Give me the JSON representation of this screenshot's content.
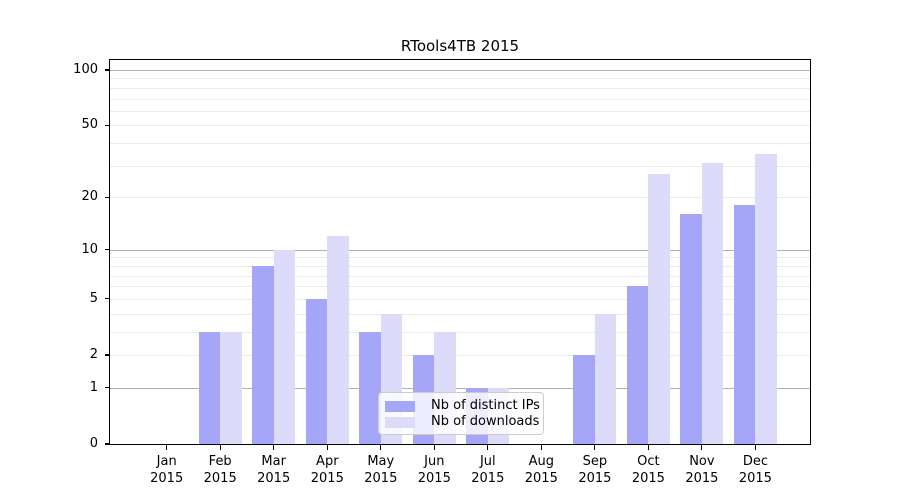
{
  "chart_data": {
    "type": "bar",
    "title": "RTools4TB 2015",
    "xlabel": "",
    "ylabel": "",
    "yscale": "log1p",
    "ylim": [
      0,
      113
    ],
    "grid": {
      "on": true,
      "major_values": [
        1,
        10,
        100
      ],
      "minor_values": [
        2,
        3,
        4,
        5,
        6,
        7,
        8,
        9,
        20,
        30,
        40,
        50,
        60,
        70,
        80,
        90
      ]
    },
    "y_axis": {
      "ticks": [
        {
          "label": "0",
          "value": 0
        },
        {
          "label": "1",
          "value": 1
        },
        {
          "label": "2",
          "value": 2
        },
        {
          "label": "5",
          "value": 5
        },
        {
          "label": "10",
          "value": 10
        },
        {
          "label": "20",
          "value": 20
        },
        {
          "label": "50",
          "value": 50
        },
        {
          "label": "100",
          "value": 100
        }
      ]
    },
    "x_axis": {
      "months": [
        "Jan",
        "Feb",
        "Mar",
        "Apr",
        "May",
        "Jun",
        "Jul",
        "Aug",
        "Sep",
        "Oct",
        "Nov",
        "Dec"
      ],
      "year": "2015"
    },
    "categories": [
      "Jan 2015",
      "Feb 2015",
      "Mar 2015",
      "Apr 2015",
      "May 2015",
      "Jun 2015",
      "Jul 2015",
      "Aug 2015",
      "Sep 2015",
      "Oct 2015",
      "Nov 2015",
      "Dec 2015"
    ],
    "series": [
      {
        "id": "distinct-ips",
        "name": "Nb of distinct IPs",
        "color": "#a6a6f9",
        "values": [
          0,
          3,
          8,
          5,
          3,
          2,
          1,
          0,
          2,
          6,
          16,
          18
        ]
      },
      {
        "id": "downloads",
        "name": "Nb of downloads",
        "color": "#dcdcfa",
        "values": [
          0,
          3,
          10,
          12,
          4,
          3,
          1,
          0,
          4,
          27,
          31,
          35
        ]
      }
    ],
    "legend_position": "lower center",
    "colors": {
      "spine": "#000000",
      "grid_major": "#b0b0b0",
      "grid_minor": "#ebebeb",
      "background": "#ffffff"
    }
  }
}
